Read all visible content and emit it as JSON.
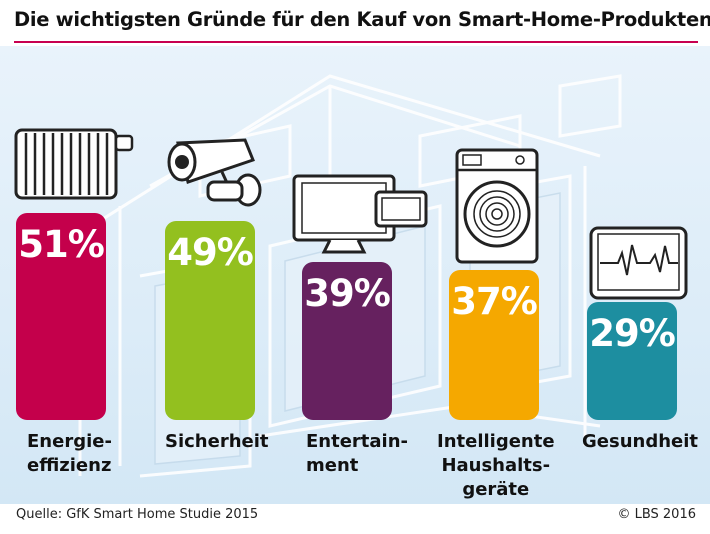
{
  "title": "Die wichtigsten Gründe für den Kauf von Smart-Home-Produkten",
  "source": "Quelle: GfK Smart Home Studie 2015",
  "copyright": "© LBS 2016",
  "colors": {
    "accent_rule": "#c8004f",
    "background": "#dcecf8"
  },
  "chart_data": {
    "type": "bar",
    "categories": [
      "Energie-\neffizienz",
      "Sicherheit",
      "Entertain-\nment",
      "Intelligente\nHaushalts-\ngeräte",
      "Gesundheit"
    ],
    "values": [
      51,
      49,
      39,
      37,
      29
    ],
    "value_labels": [
      "51%",
      "49%",
      "39%",
      "37%",
      "29%"
    ],
    "bar_colors": [
      "#c4004b",
      "#93c01f",
      "#66215f",
      "#f5a800",
      "#1d8ea0"
    ],
    "icons": [
      "radiator-icon",
      "security-camera-icon",
      "tv-tablet-icon",
      "washing-machine-icon",
      "health-monitor-icon"
    ],
    "ylim": [
      0,
      60
    ],
    "grid": false,
    "legend": "none"
  },
  "cat_labels": {
    "c0": "Energie-\neffizienz",
    "c1": "Sicherheit",
    "c2": "Entertain-\nment",
    "c3": "Intelligente\nHaushalts-\ngeräte",
    "c4": "Gesundheit"
  },
  "pct_labels": {
    "p0": "51%",
    "p1": "49%",
    "p2": "39%",
    "p3": "37%",
    "p4": "29%"
  }
}
